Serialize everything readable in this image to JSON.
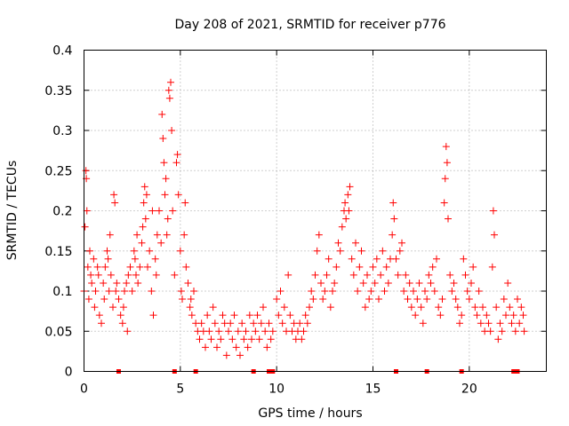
{
  "chart_data": {
    "type": "scatter",
    "title": "Day 208 of 2021, SRMTID for receiver p776",
    "xlabel": "GPS time / hours",
    "ylabel": "SRMTID / TECUs",
    "xlim": [
      0,
      24
    ],
    "ylim": [
      0,
      0.4
    ],
    "x_ticks": [
      0,
      5,
      10,
      15,
      20
    ],
    "x_tick_labels": [
      "0",
      "5",
      "10",
      "15",
      "20"
    ],
    "y_ticks": [
      0,
      0.05,
      0.1,
      0.15,
      0.2,
      0.25,
      0.3,
      0.35,
      0.4
    ],
    "y_tick_labels": [
      "0",
      "0.05",
      "0.1",
      "0.15",
      "0.2",
      "0.25",
      "0.3",
      "0.35",
      "0.4"
    ],
    "grid": true,
    "marker": "plus",
    "color": "#ff0000",
    "zero_markers_x": [
      1.8,
      4.7,
      5.8,
      8.8,
      9.6,
      9.8,
      16.2,
      17.8,
      19.6,
      22.3,
      22.5
    ],
    "series": [
      {
        "name": "SRMTID",
        "points": [
          [
            0.0,
            0.1
          ],
          [
            0.05,
            0.18
          ],
          [
            0.1,
            0.25
          ],
          [
            0.12,
            0.24
          ],
          [
            0.15,
            0.2
          ],
          [
            0.2,
            0.13
          ],
          [
            0.25,
            0.09
          ],
          [
            0.3,
            0.15
          ],
          [
            0.35,
            0.12
          ],
          [
            0.4,
            0.11
          ],
          [
            0.5,
            0.14
          ],
          [
            0.55,
            0.08
          ],
          [
            0.6,
            0.1
          ],
          [
            0.7,
            0.13
          ],
          [
            0.75,
            0.12
          ],
          [
            0.8,
            0.07
          ],
          [
            0.9,
            0.06
          ],
          [
            1.0,
            0.11
          ],
          [
            1.05,
            0.09
          ],
          [
            1.1,
            0.13
          ],
          [
            1.2,
            0.15
          ],
          [
            1.25,
            0.14
          ],
          [
            1.3,
            0.1
          ],
          [
            1.35,
            0.17
          ],
          [
            1.4,
            0.12
          ],
          [
            1.5,
            0.08
          ],
          [
            1.55,
            0.22
          ],
          [
            1.6,
            0.21
          ],
          [
            1.65,
            0.1
          ],
          [
            1.7,
            0.11
          ],
          [
            1.8,
            0.09
          ],
          [
            1.9,
            0.07
          ],
          [
            2.0,
            0.06
          ],
          [
            2.05,
            0.08
          ],
          [
            2.1,
            0.1
          ],
          [
            2.2,
            0.11
          ],
          [
            2.25,
            0.05
          ],
          [
            2.3,
            0.12
          ],
          [
            2.4,
            0.13
          ],
          [
            2.5,
            0.1
          ],
          [
            2.6,
            0.15
          ],
          [
            2.65,
            0.14
          ],
          [
            2.7,
            0.12
          ],
          [
            2.75,
            0.17
          ],
          [
            2.8,
            0.11
          ],
          [
            2.9,
            0.13
          ],
          [
            3.0,
            0.16
          ],
          [
            3.05,
            0.18
          ],
          [
            3.1,
            0.21
          ],
          [
            3.15,
            0.23
          ],
          [
            3.2,
            0.19
          ],
          [
            3.25,
            0.22
          ],
          [
            3.3,
            0.13
          ],
          [
            3.4,
            0.15
          ],
          [
            3.5,
            0.1
          ],
          [
            3.55,
            0.2
          ],
          [
            3.6,
            0.07
          ],
          [
            3.7,
            0.14
          ],
          [
            3.75,
            0.12
          ],
          [
            3.8,
            0.17
          ],
          [
            3.9,
            0.2
          ],
          [
            4.0,
            0.16
          ],
          [
            4.05,
            0.32
          ],
          [
            4.1,
            0.29
          ],
          [
            4.15,
            0.26
          ],
          [
            4.2,
            0.22
          ],
          [
            4.25,
            0.24
          ],
          [
            4.3,
            0.17
          ],
          [
            4.35,
            0.19
          ],
          [
            4.4,
            0.35
          ],
          [
            4.45,
            0.34
          ],
          [
            4.5,
            0.36
          ],
          [
            4.55,
            0.3
          ],
          [
            4.6,
            0.2
          ],
          [
            4.7,
            0.12
          ],
          [
            4.8,
            0.26
          ],
          [
            4.85,
            0.27
          ],
          [
            4.9,
            0.22
          ],
          [
            5.0,
            0.15
          ],
          [
            5.05,
            0.1
          ],
          [
            5.1,
            0.09
          ],
          [
            5.2,
            0.17
          ],
          [
            5.25,
            0.21
          ],
          [
            5.3,
            0.13
          ],
          [
            5.4,
            0.11
          ],
          [
            5.5,
            0.08
          ],
          [
            5.55,
            0.09
          ],
          [
            5.6,
            0.07
          ],
          [
            5.7,
            0.1
          ],
          [
            5.8,
            0.06
          ],
          [
            5.9,
            0.05
          ],
          [
            6.0,
            0.04
          ],
          [
            6.1,
            0.06
          ],
          [
            6.2,
            0.05
          ],
          [
            6.3,
            0.03
          ],
          [
            6.4,
            0.07
          ],
          [
            6.5,
            0.05
          ],
          [
            6.6,
            0.04
          ],
          [
            6.7,
            0.08
          ],
          [
            6.8,
            0.06
          ],
          [
            6.9,
            0.03
          ],
          [
            7.0,
            0.05
          ],
          [
            7.1,
            0.04
          ],
          [
            7.2,
            0.07
          ],
          [
            7.3,
            0.06
          ],
          [
            7.4,
            0.02
          ],
          [
            7.5,
            0.05
          ],
          [
            7.6,
            0.06
          ],
          [
            7.7,
            0.04
          ],
          [
            7.8,
            0.07
          ],
          [
            7.9,
            0.03
          ],
          [
            8.0,
            0.05
          ],
          [
            8.1,
            0.02
          ],
          [
            8.2,
            0.06
          ],
          [
            8.3,
            0.04
          ],
          [
            8.4,
            0.05
          ],
          [
            8.5,
            0.03
          ],
          [
            8.6,
            0.07
          ],
          [
            8.7,
            0.04
          ],
          [
            8.8,
            0.06
          ],
          [
            8.9,
            0.05
          ],
          [
            9.0,
            0.07
          ],
          [
            9.1,
            0.04
          ],
          [
            9.2,
            0.06
          ],
          [
            9.3,
            0.08
          ],
          [
            9.4,
            0.05
          ],
          [
            9.5,
            0.03
          ],
          [
            9.6,
            0.06
          ],
          [
            9.7,
            0.04
          ],
          [
            9.8,
            0.05
          ],
          [
            10.0,
            0.09
          ],
          [
            10.1,
            0.07
          ],
          [
            10.2,
            0.1
          ],
          [
            10.3,
            0.06
          ],
          [
            10.4,
            0.08
          ],
          [
            10.5,
            0.05
          ],
          [
            10.6,
            0.12
          ],
          [
            10.7,
            0.07
          ],
          [
            10.8,
            0.05
          ],
          [
            10.9,
            0.06
          ],
          [
            11.0,
            0.04
          ],
          [
            11.1,
            0.05
          ],
          [
            11.2,
            0.06
          ],
          [
            11.3,
            0.04
          ],
          [
            11.4,
            0.05
          ],
          [
            11.5,
            0.07
          ],
          [
            11.6,
            0.06
          ],
          [
            11.7,
            0.08
          ],
          [
            11.8,
            0.1
          ],
          [
            11.9,
            0.09
          ],
          [
            12.0,
            0.12
          ],
          [
            12.1,
            0.15
          ],
          [
            12.2,
            0.17
          ],
          [
            12.3,
            0.11
          ],
          [
            12.4,
            0.09
          ],
          [
            12.5,
            0.1
          ],
          [
            12.6,
            0.12
          ],
          [
            12.7,
            0.14
          ],
          [
            12.8,
            0.08
          ],
          [
            12.9,
            0.1
          ],
          [
            13.0,
            0.11
          ],
          [
            13.1,
            0.13
          ],
          [
            13.2,
            0.16
          ],
          [
            13.3,
            0.15
          ],
          [
            13.4,
            0.18
          ],
          [
            13.5,
            0.2
          ],
          [
            13.55,
            0.21
          ],
          [
            13.6,
            0.19
          ],
          [
            13.7,
            0.22
          ],
          [
            13.75,
            0.2
          ],
          [
            13.8,
            0.23
          ],
          [
            13.9,
            0.14
          ],
          [
            14.0,
            0.12
          ],
          [
            14.1,
            0.16
          ],
          [
            14.2,
            0.1
          ],
          [
            14.3,
            0.13
          ],
          [
            14.4,
            0.15
          ],
          [
            14.5,
            0.11
          ],
          [
            14.6,
            0.08
          ],
          [
            14.7,
            0.12
          ],
          [
            14.8,
            0.09
          ],
          [
            14.9,
            0.1
          ],
          [
            15.0,
            0.13
          ],
          [
            15.1,
            0.11
          ],
          [
            15.2,
            0.14
          ],
          [
            15.3,
            0.09
          ],
          [
            15.4,
            0.12
          ],
          [
            15.5,
            0.15
          ],
          [
            15.6,
            0.1
          ],
          [
            15.7,
            0.13
          ],
          [
            15.8,
            0.11
          ],
          [
            15.9,
            0.14
          ],
          [
            16.0,
            0.17
          ],
          [
            16.05,
            0.21
          ],
          [
            16.1,
            0.19
          ],
          [
            16.2,
            0.14
          ],
          [
            16.3,
            0.12
          ],
          [
            16.4,
            0.15
          ],
          [
            16.5,
            0.16
          ],
          [
            16.6,
            0.1
          ],
          [
            16.7,
            0.12
          ],
          [
            16.8,
            0.09
          ],
          [
            16.9,
            0.11
          ],
          [
            17.0,
            0.08
          ],
          [
            17.1,
            0.1
          ],
          [
            17.2,
            0.07
          ],
          [
            17.3,
            0.09
          ],
          [
            17.4,
            0.11
          ],
          [
            17.5,
            0.08
          ],
          [
            17.6,
            0.06
          ],
          [
            17.7,
            0.1
          ],
          [
            17.8,
            0.09
          ],
          [
            17.9,
            0.12
          ],
          [
            18.0,
            0.11
          ],
          [
            18.1,
            0.13
          ],
          [
            18.2,
            0.1
          ],
          [
            18.3,
            0.14
          ],
          [
            18.4,
            0.08
          ],
          [
            18.5,
            0.07
          ],
          [
            18.6,
            0.09
          ],
          [
            18.7,
            0.21
          ],
          [
            18.75,
            0.24
          ],
          [
            18.8,
            0.28
          ],
          [
            18.85,
            0.26
          ],
          [
            18.9,
            0.19
          ],
          [
            19.0,
            0.12
          ],
          [
            19.1,
            0.1
          ],
          [
            19.2,
            0.11
          ],
          [
            19.3,
            0.09
          ],
          [
            19.4,
            0.08
          ],
          [
            19.5,
            0.06
          ],
          [
            19.6,
            0.07
          ],
          [
            19.7,
            0.14
          ],
          [
            19.8,
            0.12
          ],
          [
            19.9,
            0.1
          ],
          [
            20.0,
            0.09
          ],
          [
            20.1,
            0.11
          ],
          [
            20.2,
            0.13
          ],
          [
            20.3,
            0.08
          ],
          [
            20.4,
            0.07
          ],
          [
            20.5,
            0.1
          ],
          [
            20.6,
            0.06
          ],
          [
            20.7,
            0.08
          ],
          [
            20.8,
            0.05
          ],
          [
            20.9,
            0.07
          ],
          [
            21.0,
            0.06
          ],
          [
            21.1,
            0.05
          ],
          [
            21.2,
            0.13
          ],
          [
            21.25,
            0.2
          ],
          [
            21.3,
            0.17
          ],
          [
            21.4,
            0.08
          ],
          [
            21.5,
            0.04
          ],
          [
            21.6,
            0.06
          ],
          [
            21.7,
            0.05
          ],
          [
            21.8,
            0.09
          ],
          [
            21.9,
            0.07
          ],
          [
            22.0,
            0.11
          ],
          [
            22.1,
            0.08
          ],
          [
            22.2,
            0.06
          ],
          [
            22.3,
            0.07
          ],
          [
            22.4,
            0.05
          ],
          [
            22.5,
            0.09
          ],
          [
            22.6,
            0.06
          ],
          [
            22.7,
            0.08
          ],
          [
            22.8,
            0.07
          ],
          [
            22.85,
            0.05
          ]
        ]
      }
    ]
  }
}
